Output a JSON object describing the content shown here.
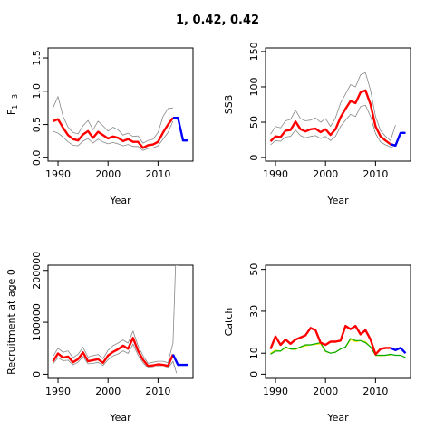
{
  "title": "1, 0.42, 0.42",
  "colors": {
    "median": "#ff0000",
    "forecast": "#0000ff",
    "band": "#888888",
    "observed": "#00aa00",
    "alt": "#e8e800"
  },
  "chart_data": [
    {
      "type": "line",
      "id": "f13",
      "ylabel": "F",
      "ylabel_sub": "1−3",
      "xlabel": "Year",
      "xlim": [
        1988,
        2017
      ],
      "ylim": [
        -0.05,
        1.65
      ],
      "xticks": [
        1990,
        2000,
        2010
      ],
      "yticks": [
        0.0,
        0.5,
        1.0,
        1.5
      ],
      "yticklabels": [
        "0.0",
        "0.5",
        "1.0",
        "1.5"
      ],
      "series": [
        {
          "role": "upper",
          "x": [
            1989,
            1990,
            1991,
            1992,
            1993,
            1994,
            1995,
            1996,
            1997,
            1998,
            1999,
            2000,
            2001,
            2002,
            2003,
            2004,
            2005,
            2006,
            2007,
            2008,
            2009,
            2010,
            2011,
            2012,
            2013
          ],
          "values": [
            0.75,
            0.92,
            0.62,
            0.46,
            0.38,
            0.36,
            0.48,
            0.56,
            0.42,
            0.55,
            0.48,
            0.4,
            0.46,
            0.42,
            0.34,
            0.37,
            0.32,
            0.33,
            0.22,
            0.26,
            0.28,
            0.38,
            0.62,
            0.74,
            0.75
          ]
        },
        {
          "role": "median",
          "x": [
            1989,
            1990,
            1991,
            1992,
            1993,
            1994,
            1995,
            1996,
            1997,
            1998,
            1999,
            2000,
            2001,
            2002,
            2003,
            2004,
            2005,
            2006,
            2007,
            2008,
            2009,
            2010,
            2011,
            2012,
            2013
          ],
          "values": [
            0.55,
            0.58,
            0.45,
            0.34,
            0.28,
            0.26,
            0.35,
            0.4,
            0.3,
            0.39,
            0.34,
            0.29,
            0.32,
            0.3,
            0.25,
            0.28,
            0.24,
            0.24,
            0.15,
            0.19,
            0.2,
            0.24,
            0.38,
            0.5,
            0.6
          ]
        },
        {
          "role": "lower",
          "x": [
            1989,
            1990,
            1991,
            1992,
            1993,
            1994,
            1995,
            1996,
            1997,
            1998,
            1999,
            2000,
            2001,
            2002,
            2003,
            2004,
            2005,
            2006,
            2007,
            2008,
            2009,
            2010,
            2011,
            2012,
            2013
          ],
          "values": [
            0.4,
            0.37,
            0.31,
            0.24,
            0.19,
            0.18,
            0.25,
            0.29,
            0.22,
            0.28,
            0.24,
            0.21,
            0.23,
            0.21,
            0.18,
            0.2,
            0.17,
            0.17,
            0.11,
            0.14,
            0.15,
            0.18,
            0.28,
            0.38,
            0.55
          ]
        },
        {
          "role": "forecast",
          "x": [
            2013,
            2014,
            2015,
            2016
          ],
          "values": [
            0.6,
            0.6,
            0.26,
            0.26
          ]
        }
      ]
    },
    {
      "type": "line",
      "id": "ssb",
      "ylabel": "SSB",
      "xlabel": "Year",
      "xlim": [
        1988,
        2017
      ],
      "ylim": [
        -5,
        155
      ],
      "xticks": [
        1990,
        2000,
        2010
      ],
      "yticks": [
        0,
        50,
        100,
        150
      ],
      "yticklabels": [
        "0",
        "50",
        "100",
        "150"
      ],
      "series": [
        {
          "role": "upper",
          "x": [
            1989,
            1990,
            1991,
            1992,
            1993,
            1994,
            1995,
            1996,
            1997,
            1998,
            1999,
            2000,
            2001,
            2002,
            2003,
            2004,
            2005,
            2006,
            2007,
            2008,
            2009,
            2010,
            2011,
            2012,
            2013,
            2014
          ],
          "values": [
            33,
            44,
            42,
            52,
            54,
            67,
            55,
            52,
            53,
            56,
            50,
            55,
            44,
            56,
            77,
            90,
            103,
            100,
            117,
            120,
            95,
            58,
            38,
            30,
            24,
            46
          ]
        },
        {
          "role": "median",
          "x": [
            1989,
            1990,
            1991,
            1992,
            1993,
            1994,
            1995,
            1996,
            1997,
            1998,
            1999,
            2000,
            2001,
            2002,
            2003,
            2004,
            2005,
            2006,
            2007,
            2008,
            2009,
            2010,
            2011,
            2012,
            2013,
            2014
          ],
          "values": [
            23,
            30,
            29,
            38,
            39,
            51,
            40,
            37,
            40,
            41,
            36,
            40,
            32,
            40,
            57,
            69,
            80,
            77,
            92,
            95,
            75,
            44,
            30,
            24,
            19,
            17
          ]
        },
        {
          "role": "lower",
          "x": [
            1989,
            1990,
            1991,
            1992,
            1993,
            1994,
            1995,
            1996,
            1997,
            1998,
            1999,
            2000,
            2001,
            2002,
            2003,
            2004,
            2005,
            2006,
            2007,
            2008,
            2009,
            2010,
            2011,
            2012,
            2013,
            2014
          ],
          "values": [
            18,
            24,
            23,
            29,
            30,
            39,
            31,
            28,
            30,
            31,
            27,
            30,
            24,
            30,
            44,
            53,
            61,
            58,
            72,
            74,
            58,
            34,
            22,
            18,
            15,
            13
          ]
        },
        {
          "role": "forecast",
          "x": [
            2013,
            2014,
            2015,
            2016
          ],
          "values": [
            19,
            17,
            35,
            35
          ]
        }
      ]
    },
    {
      "type": "line",
      "id": "recruit",
      "ylabel": "Recruitment at age 0",
      "xlabel": "Year",
      "xlim": [
        1988,
        2017
      ],
      "ylim": [
        -8000,
        210000
      ],
      "xticks": [
        1990,
        2000,
        2010
      ],
      "yticks": [
        0,
        100000,
        200000
      ],
      "yticklabels": [
        "0",
        "100000",
        "200000"
      ],
      "series": [
        {
          "role": "upper",
          "x": [
            1989,
            1990,
            1991,
            1992,
            1993,
            1994,
            1995,
            1996,
            1997,
            1998,
            1999,
            2000,
            2001,
            2002,
            2003,
            2004,
            2005,
            2006,
            2007,
            2008,
            2009,
            2010,
            2011,
            2012,
            2013,
            2013.5,
            2014
          ],
          "values": [
            34000,
            50000,
            42000,
            45000,
            32000,
            38000,
            52000,
            33000,
            36000,
            38000,
            30000,
            46000,
            55000,
            60000,
            66000,
            60000,
            83000,
            55000,
            36000,
            21000,
            23000,
            25000,
            25000,
            22000,
            60000,
            210000,
            220000
          ]
        },
        {
          "role": "median",
          "x": [
            1989,
            1990,
            1991,
            1992,
            1993,
            1994,
            1995,
            1996,
            1997,
            1998,
            1999,
            2000,
            2001,
            2002,
            2003,
            2004,
            2005,
            2006,
            2007,
            2008,
            2009,
            2010,
            2011,
            2012,
            2013
          ],
          "values": [
            25000,
            40000,
            32000,
            34000,
            23000,
            29000,
            42000,
            25000,
            27000,
            29000,
            22000,
            36000,
            43000,
            48000,
            55000,
            49000,
            70000,
            45000,
            28000,
            16000,
            17000,
            19000,
            18000,
            16000,
            38000
          ]
        },
        {
          "role": "lower",
          "x": [
            1989,
            1990,
            1991,
            1992,
            1993,
            1994,
            1995,
            1996,
            1997,
            1998,
            1999,
            2000,
            2001,
            2002,
            2003,
            2004,
            2005,
            2006,
            2007,
            2008,
            2009,
            2010,
            2011,
            2012,
            2013,
            2013.7
          ],
          "values": [
            20000,
            32000,
            26000,
            27000,
            18000,
            23000,
            34000,
            20000,
            21000,
            23000,
            17000,
            28000,
            35000,
            39000,
            45000,
            40000,
            58000,
            37000,
            22000,
            12000,
            13000,
            15000,
            14000,
            12000,
            25000,
            2000
          ]
        },
        {
          "role": "forecast",
          "x": [
            2013,
            2014,
            2015,
            2016
          ],
          "values": [
            38000,
            18000,
            18000,
            18000
          ]
        }
      ]
    },
    {
      "type": "line",
      "id": "catch",
      "ylabel": "Catch",
      "xlabel": "Year",
      "xlim": [
        1988,
        2017
      ],
      "ylim": [
        -2,
        52
      ],
      "xticks": [
        1990,
        2000,
        2010
      ],
      "yticks": [
        0,
        10,
        30,
        50
      ],
      "yticklabels": [
        "0",
        "10",
        "30",
        "50"
      ],
      "series": [
        {
          "role": "alt",
          "x": [
            1989,
            1990,
            1991,
            1992,
            1993,
            1994,
            1995,
            1996,
            1997,
            1998,
            1999,
            2000,
            2001,
            2002,
            2003,
            2004,
            2005,
            2006,
            2007,
            2008,
            2009,
            2010,
            2011,
            2012,
            2013
          ],
          "values": [
            10,
            11.5,
            11,
            12.5,
            12,
            11.8,
            12.8,
            13.5,
            14,
            14.2,
            14.5,
            10.8,
            10,
            10.5,
            12,
            12.8,
            16.5,
            15.5,
            16,
            15.5,
            13,
            9,
            8.8,
            9,
            9.2
          ]
        },
        {
          "role": "observed",
          "x": [
            1989,
            1990,
            1991,
            1992,
            1993,
            1994,
            1995,
            1996,
            1997,
            1998,
            1999,
            2000,
            2001,
            2002,
            2003,
            2004,
            2005,
            2006,
            2007,
            2008,
            2009,
            2010,
            2011,
            2012,
            2013,
            2014,
            2015,
            2016
          ],
          "values": [
            9.5,
            11,
            11,
            13,
            12,
            12,
            13,
            14,
            14,
            14.5,
            15,
            11,
            10,
            10.5,
            12,
            13,
            17,
            16,
            16,
            15,
            13,
            9,
            9,
            9,
            9.5,
            9,
            9,
            8
          ]
        },
        {
          "role": "median",
          "x": [
            1989,
            1990,
            1991,
            1992,
            1993,
            1994,
            1995,
            1996,
            1997,
            1998,
            1999,
            2000,
            2001,
            2002,
            2003,
            2004,
            2005,
            2006,
            2007,
            2008,
            2009,
            2010,
            2011,
            2012,
            2013
          ],
          "values": [
            12,
            18,
            14,
            16.5,
            14.5,
            16.5,
            17.5,
            18.5,
            22,
            21,
            15,
            14,
            15.5,
            15.5,
            16,
            23,
            21.5,
            23,
            19,
            21,
            16.5,
            9.5,
            12,
            12.5,
            12.5
          ]
        },
        {
          "role": "forecast",
          "x": [
            2013,
            2014,
            2015,
            2016
          ],
          "values": [
            12.5,
            11.5,
            12.5,
            10
          ]
        }
      ]
    }
  ]
}
